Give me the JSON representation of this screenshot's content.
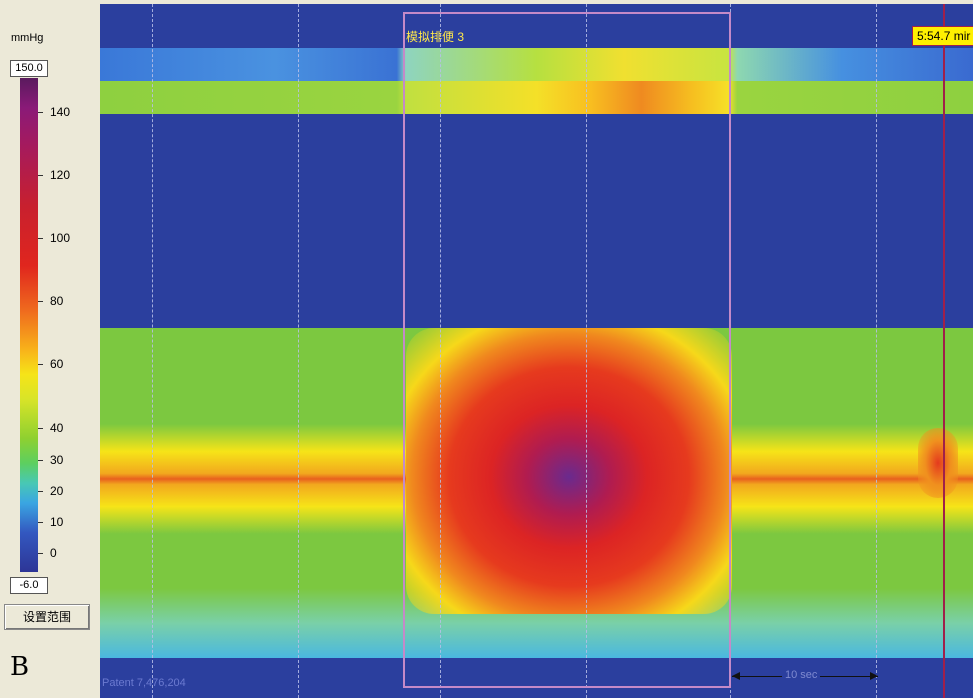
{
  "legend": {
    "unit": "mmHg",
    "max_value": "150.0",
    "min_value": "-6.0",
    "ticks": [
      "140",
      "120",
      "100",
      "80",
      "60",
      "40",
      "30",
      "20",
      "10",
      "0"
    ],
    "range_button_label": "设置范围"
  },
  "panel_letter": "B",
  "plot": {
    "event_label": "模拟排便 3",
    "time_readout": "5:54.7 mir",
    "patent_label": "Patent 7,476,204",
    "scale_label": "10 sec"
  },
  "colors": {
    "background_blue": "#2b3f9e",
    "high_pressure_red": "#dc2424",
    "peak_purple": "#6a2a8e",
    "baseline_green": "#7cc840",
    "event_box": "#c48ac8",
    "time_marker": "#a0204a",
    "readout_bg": "#fff000"
  }
}
